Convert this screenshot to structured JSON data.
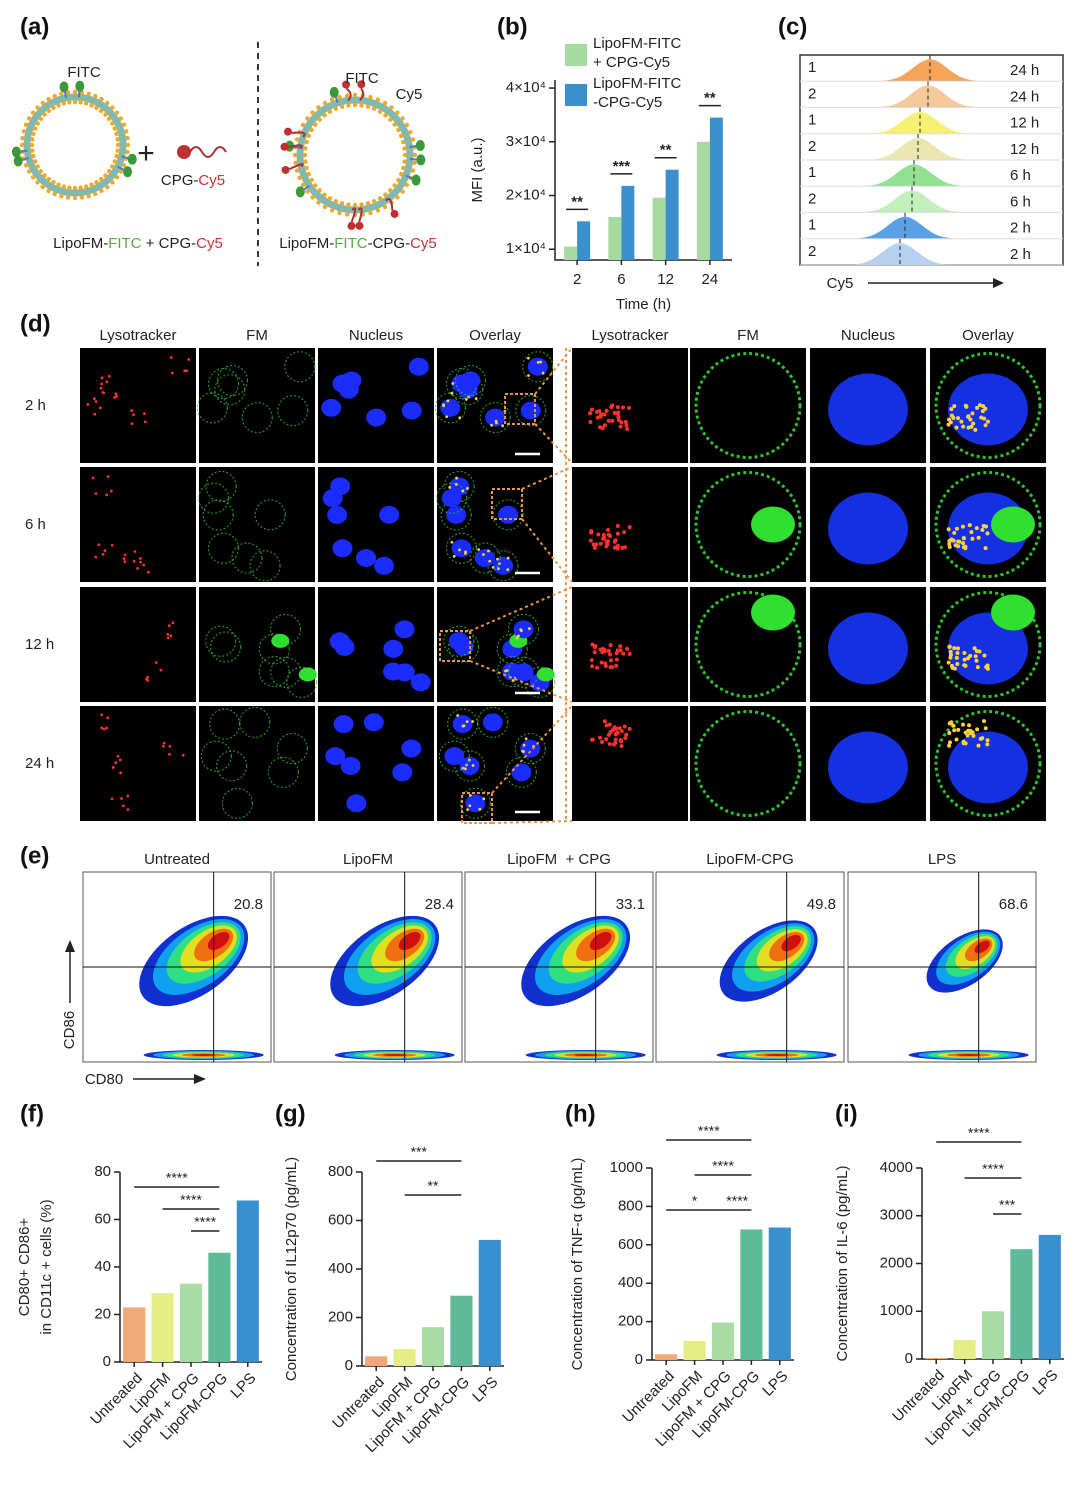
{
  "panel_labels": [
    "(a)",
    "(b)",
    "(c)",
    "(d)",
    "(e)",
    "(f)",
    "(g)",
    "(h)",
    "(i)"
  ],
  "scheme": {
    "left": {
      "fitc": "FITC",
      "plus": "+",
      "probe": [
        "CPG-",
        "Cy5"
      ],
      "caption": [
        "LipoFM-",
        "FITC",
        " + CPG-",
        "Cy5"
      ]
    },
    "right": {
      "fitc": "FITC",
      "cy5": "Cy5",
      "caption": [
        "LipoFM-",
        "FITC",
        "-CPG-",
        "Cy5"
      ]
    }
  },
  "chart_data": [
    {
      "type": "bar",
      "y_label": [
        "MFI (a.u.)"
      ],
      "x_label": "Time (h)",
      "categories": [
        "2",
        "6",
        "12",
        "24"
      ],
      "series": [
        {
          "name": [
            "LipoFM-FITC",
            "+ CPG-Cy5"
          ],
          "color": "#a6dba0",
          "values": [
            10500,
            16000,
            19600,
            30000
          ]
        },
        {
          "name": [
            "LipoFM-FITC",
            "-CPG-Cy5"
          ],
          "color": "#3b8fcd",
          "values": [
            15200,
            21800,
            24800,
            34500
          ]
        }
      ],
      "ylim": [
        8000,
        41500
      ],
      "yticks": [
        {
          "value": 10000,
          "label": "1×10⁴"
        },
        {
          "value": 20000,
          "label": "2×10⁴"
        },
        {
          "value": 30000,
          "label": "3×10⁴"
        },
        {
          "value": 40000,
          "label": "4×10⁴"
        }
      ],
      "significance": [
        "**",
        "***",
        "**",
        "**"
      ]
    },
    {
      "type": "bar",
      "y_label": [
        "CD80+ CD86+",
        "in CD11c + cells (%)"
      ],
      "categories": [
        "Untreated",
        "LipoFM",
        "LipoFM + CPG",
        "LipoFM-CPG",
        "LPS"
      ],
      "colors": [
        "#f2a97a",
        "#e3ee86",
        "#a9dca4",
        "#5fba9a",
        "#3a8fcf"
      ],
      "values": [
        23,
        29,
        33,
        46,
        68
      ],
      "ylim": [
        0,
        80
      ],
      "yticks": [
        0,
        20,
        40,
        60,
        80
      ],
      "brackets": [
        [
          {
            "from": 0,
            "to": 3,
            "label": "****"
          }
        ],
        [
          {
            "from": 1,
            "to": 3,
            "label": "****"
          }
        ],
        [
          {
            "from": 2,
            "to": 3,
            "label": "****"
          }
        ]
      ]
    },
    {
      "type": "bar",
      "y_label": [
        "Concentration of IL12p70 (pg/mL)"
      ],
      "categories": [
        "Untreated",
        "LipoFM",
        "LipoFM + CPG",
        "LipoFM-CPG",
        "LPS"
      ],
      "colors": [
        "#f2a97a",
        "#e3ee86",
        "#a9dca4",
        "#5fba9a",
        "#3a8fcf"
      ],
      "values": [
        40,
        70,
        160,
        290,
        520
      ],
      "ylim": [
        0,
        800
      ],
      "yticks": [
        0,
        200,
        400,
        600,
        800
      ],
      "brackets": [
        [
          {
            "from": 0,
            "to": 3,
            "label": "***"
          }
        ],
        [
          {
            "from": 1,
            "to": 3,
            "label": "**"
          }
        ]
      ]
    },
    {
      "type": "bar",
      "y_label": [
        "Concentration of TNF-α (pg/mL)"
      ],
      "categories": [
        "Untreated",
        "LipoFM",
        "LipoFM + CPG",
        "LipoFM-CPG",
        "LPS"
      ],
      "colors": [
        "#f2a97a",
        "#e3ee86",
        "#a9dca4",
        "#5fba9a",
        "#3a8fcf"
      ],
      "values": [
        30,
        100,
        195,
        680,
        690
      ],
      "ylim": [
        0,
        1000
      ],
      "yticks": [
        0,
        200,
        400,
        600,
        800,
        1000
      ],
      "brackets": [
        [
          {
            "from": 0,
            "to": 3,
            "label": "****"
          }
        ],
        [
          {
            "from": 1,
            "to": 3,
            "label": "****"
          }
        ],
        [
          {
            "from": 0,
            "to": 2,
            "label": "*"
          },
          {
            "from": 2,
            "to": 3,
            "label": "****"
          }
        ]
      ]
    },
    {
      "type": "bar",
      "y_label": [
        "Concentration of IL-6 (pg/mL)"
      ],
      "categories": [
        "Untreated",
        "LipoFM",
        "LipoFM + CPG",
        "LipoFM-CPG",
        "LPS"
      ],
      "colors": [
        "#f2a97a",
        "#e3ee86",
        "#a9dca4",
        "#5fba9a",
        "#3a8fcf"
      ],
      "values": [
        20,
        400,
        1000,
        2300,
        2600
      ],
      "ylim": [
        0,
        4000
      ],
      "yticks": [
        0,
        1000,
        2000,
        3000,
        4000
      ],
      "brackets": [
        [
          {
            "from": 0,
            "to": 3,
            "label": "****"
          }
        ],
        [
          {
            "from": 1,
            "to": 3,
            "label": "****"
          }
        ],
        [
          {
            "from": 2,
            "to": 3,
            "label": "***"
          }
        ]
      ]
    }
  ],
  "histograms": {
    "axis_label": "Cy5",
    "rows": [
      {
        "replicate": "1",
        "time": "24 h",
        "color": "#f39440"
      },
      {
        "replicate": "2",
        "time": "24 h",
        "color": "#f5c08a"
      },
      {
        "replicate": "1",
        "time": "12 h",
        "color": "#f6ee5a"
      },
      {
        "replicate": "2",
        "time": "12 h",
        "color": "#e6e4a2"
      },
      {
        "replicate": "1",
        "time": "6 h",
        "color": "#7fdc7f"
      },
      {
        "replicate": "2",
        "time": "6 h",
        "color": "#b8ecb0"
      },
      {
        "replicate": "1",
        "time": "2 h",
        "color": "#3d8fe0"
      },
      {
        "replicate": "2",
        "time": "2 h",
        "color": "#a9c9ee"
      }
    ]
  },
  "imaging": {
    "columns": [
      {
        "label": "Lysotracker",
        "color": "#e03030"
      },
      {
        "label": "FM",
        "color": "#2aa02a"
      },
      {
        "label": "Nucleus",
        "color": "#2060c0"
      },
      {
        "label": "Overlay",
        "color": "#111111"
      },
      {
        "label": "Lysotracker",
        "color": "#e03030"
      },
      {
        "label": "FM",
        "color": "#2aa02a"
      },
      {
        "label": "Nucleus",
        "color": "#2060c0"
      },
      {
        "label": "Overlay",
        "color": "#111111"
      }
    ],
    "rows": [
      "2 h",
      "6 h",
      "12 h",
      "24 h"
    ]
  },
  "flow": {
    "x_label": "CD80",
    "y_label": "CD86",
    "plots": [
      {
        "title": "Untreated",
        "value": "20.8"
      },
      {
        "title": "LipoFM",
        "value": "28.4"
      },
      {
        "title": "LipoFM  + CPG",
        "value": "33.1"
      },
      {
        "title": "LipoFM-CPG",
        "value": "49.8"
      },
      {
        "title": "LPS",
        "value": "68.6"
      }
    ]
  }
}
